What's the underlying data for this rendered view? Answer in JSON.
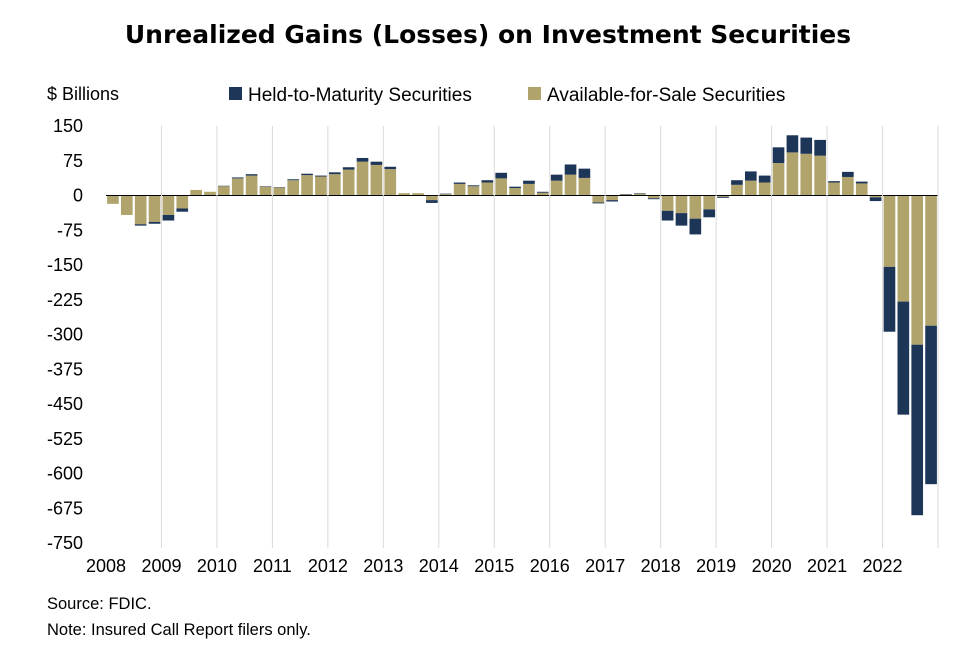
{
  "chart_data": {
    "type": "bar",
    "stacked": true,
    "title": "Unrealized Gains (Losses) on Investment Securities",
    "ylabel": "$ Billions",
    "ylim": [
      -750,
      150
    ],
    "yticks": [
      150,
      75,
      0,
      -75,
      -150,
      -225,
      -300,
      -375,
      -450,
      -525,
      -600,
      -675,
      -750
    ],
    "year_labels": [
      "2008",
      "2009",
      "2010",
      "2011",
      "2012",
      "2013",
      "2014",
      "2015",
      "2016",
      "2017",
      "2018",
      "2019",
      "2020",
      "2021",
      "2022"
    ],
    "grid": false,
    "legend_position": "top",
    "categories": [
      "2008Q1",
      "2008Q2",
      "2008Q3",
      "2008Q4",
      "2009Q1",
      "2009Q2",
      "2009Q3",
      "2009Q4",
      "2010Q1",
      "2010Q2",
      "2010Q3",
      "2010Q4",
      "2011Q1",
      "2011Q2",
      "2011Q3",
      "2011Q4",
      "2012Q1",
      "2012Q2",
      "2012Q3",
      "2012Q4",
      "2013Q1",
      "2013Q2",
      "2013Q3",
      "2013Q4",
      "2014Q1",
      "2014Q2",
      "2014Q3",
      "2014Q4",
      "2015Q1",
      "2015Q2",
      "2015Q3",
      "2015Q4",
      "2016Q1",
      "2016Q2",
      "2016Q3",
      "2016Q4",
      "2017Q1",
      "2017Q2",
      "2017Q3",
      "2017Q4",
      "2018Q1",
      "2018Q2",
      "2018Q3",
      "2018Q4",
      "2019Q1",
      "2019Q2",
      "2019Q3",
      "2019Q4",
      "2020Q1",
      "2020Q2",
      "2020Q3",
      "2020Q4",
      "2021Q1",
      "2021Q2",
      "2021Q3",
      "2021Q4",
      "2022Q1",
      "2022Q2",
      "2022Q3",
      "2022Q4"
    ],
    "series": [
      {
        "name": "Available-for-Sale Securities",
        "color": "#b0a46c",
        "values": [
          -18,
          -42,
          -62,
          -57,
          -42,
          -28,
          12,
          8,
          20,
          37,
          43,
          19,
          17,
          33,
          44,
          41,
          46,
          56,
          73,
          66,
          57,
          5,
          5,
          -10,
          3,
          25,
          20,
          28,
          37,
          16,
          25,
          6,
          32,
          45,
          38,
          -15,
          -10,
          2,
          4,
          -6,
          -33,
          -38,
          -50,
          -30,
          -3,
          23,
          32,
          28,
          70,
          93,
          90,
          86,
          28,
          40,
          26,
          -4,
          -154,
          -229,
          -322,
          -281
        ]
      },
      {
        "name": "Held-to-Maturity Securities",
        "color": "#1d3557",
        "values": [
          0,
          0,
          -3,
          -4,
          -12,
          -7,
          0,
          0,
          1,
          2,
          3,
          1,
          1,
          2,
          3,
          2,
          4,
          5,
          8,
          7,
          5,
          0,
          0,
          -6,
          1,
          3,
          2,
          5,
          12,
          3,
          7,
          2,
          13,
          22,
          20,
          -2,
          -3,
          1,
          1,
          -2,
          -21,
          -27,
          -34,
          -17,
          -2,
          10,
          20,
          15,
          34,
          37,
          35,
          34,
          3,
          11,
          4,
          -8,
          -140,
          -244,
          -368,
          -342
        ]
      }
    ],
    "totals": [
      -18,
      -42,
      -65,
      -61,
      -54,
      -35,
      12,
      8,
      21,
      39,
      46,
      20,
      18,
      35,
      47,
      43,
      50,
      61,
      81,
      73,
      62,
      5,
      5,
      -16,
      4,
      28,
      22,
      33,
      49,
      19,
      32,
      8,
      45,
      67,
      58,
      -17,
      -13,
      3,
      5,
      -8,
      -54,
      -65,
      -84,
      -47,
      -5,
      33,
      52,
      43,
      104,
      130,
      125,
      120,
      31,
      51,
      30,
      -12,
      -294,
      -473,
      -690,
      -623
    ]
  },
  "legend": {
    "items": [
      {
        "label": "Held-to-Maturity Securities",
        "color": "#1d3557"
      },
      {
        "label": "Available-for-Sale Securities",
        "color": "#b0a46c"
      }
    ]
  },
  "notes": {
    "source": "Source: FDIC.",
    "note": "Note: Insured Call Report filers only."
  }
}
